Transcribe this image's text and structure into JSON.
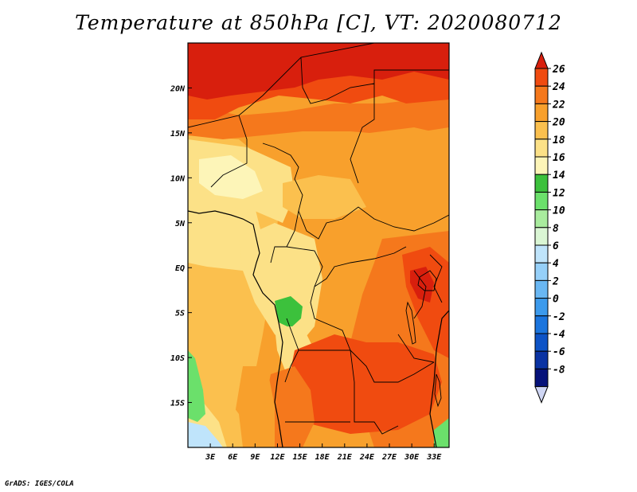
{
  "title": "Temperature at 850hPa [C], VT: 2020080712",
  "footer": "GrADS: IGES/COLA",
  "map": {
    "lon_range": [
      0,
      35
    ],
    "lat_range": [
      -20,
      25
    ],
    "x_ticks": [
      "3E",
      "6E",
      "9E",
      "12E",
      "15E",
      "18E",
      "21E",
      "24E",
      "27E",
      "30E",
      "33E"
    ],
    "x_tick_values": [
      3,
      6,
      9,
      12,
      15,
      18,
      21,
      24,
      27,
      30,
      33
    ],
    "y_ticks": [
      "20N",
      "15N",
      "10N",
      "5N",
      "EQ",
      "5S",
      "10S",
      "15S"
    ],
    "y_tick_values": [
      20,
      15,
      10,
      5,
      0,
      -5,
      -10,
      -15
    ]
  },
  "colorbar": {
    "labels": [
      "26",
      "24",
      "22",
      "20",
      "18",
      "16",
      "14",
      "12",
      "10",
      "8",
      "6",
      "4",
      "2",
      "0",
      "-2",
      "-4",
      "-6",
      "-8"
    ],
    "colors": [
      "#d81f0d",
      "#f04b10",
      "#f5781c",
      "#f8a02c",
      "#fbc04e",
      "#fce187",
      "#fdf5b8",
      "#3cc13c",
      "#6be06b",
      "#a9ec9e",
      "#daf6d4",
      "#bfe4fb",
      "#96d0f9",
      "#69b7f3",
      "#3c9aec",
      "#1b75de",
      "#0d53c6",
      "#0a33a3",
      "#06127a",
      "#cfd6f4"
    ]
  }
}
